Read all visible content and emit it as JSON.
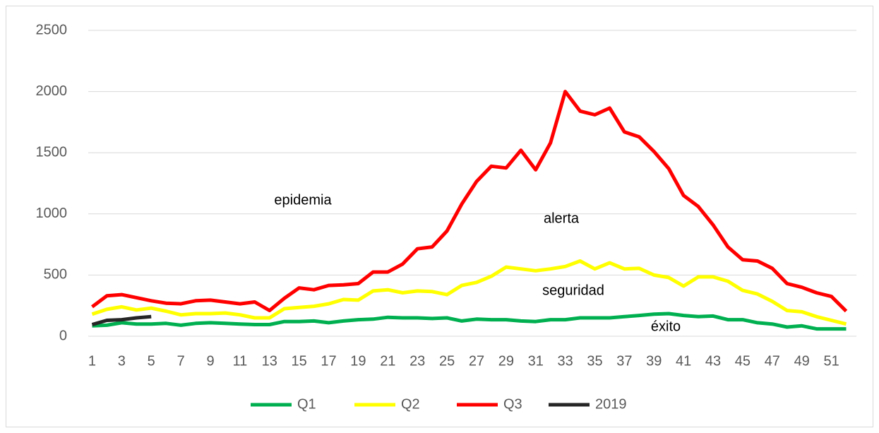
{
  "chart_data": {
    "type": "line",
    "categories": [
      1,
      null,
      3,
      null,
      5,
      null,
      7,
      null,
      9,
      null,
      11,
      null,
      13,
      null,
      15,
      null,
      17,
      null,
      19,
      null,
      21,
      null,
      23,
      null,
      25,
      null,
      27,
      null,
      29,
      null,
      31,
      null,
      33,
      null,
      35,
      null,
      37,
      null,
      39,
      null,
      41,
      null,
      43,
      null,
      45,
      null,
      47,
      null,
      49,
      null,
      51,
      null
    ],
    "series": [
      {
        "name": "Q1",
        "color": "#00b050",
        "values": [
          85,
          90,
          110,
          100,
          100,
          105,
          90,
          105,
          110,
          105,
          100,
          95,
          95,
          120,
          120,
          125,
          110,
          125,
          135,
          140,
          155,
          150,
          150,
          145,
          150,
          125,
          140,
          135,
          135,
          125,
          120,
          135,
          135,
          150,
          150,
          150,
          160,
          170,
          180,
          185,
          170,
          160,
          165,
          135,
          135,
          110,
          100,
          75,
          85,
          60,
          60,
          60
        ]
      },
      {
        "name": "Q2",
        "color": "#ffff00",
        "values": [
          180,
          220,
          240,
          215,
          230,
          205,
          175,
          185,
          185,
          190,
          175,
          150,
          150,
          225,
          235,
          245,
          265,
          300,
          295,
          370,
          380,
          355,
          370,
          365,
          340,
          415,
          440,
          490,
          565,
          550,
          535,
          550,
          570,
          615,
          550,
          600,
          550,
          555,
          500,
          480,
          410,
          485,
          485,
          450,
          375,
          345,
          285,
          210,
          200,
          160,
          130,
          100
        ]
      },
      {
        "name": "Q3",
        "color": "#ff0000",
        "values": [
          240,
          330,
          340,
          315,
          290,
          270,
          265,
          290,
          295,
          280,
          265,
          280,
          210,
          310,
          395,
          380,
          415,
          420,
          430,
          525,
          525,
          590,
          715,
          730,
          860,
          1080,
          1265,
          1390,
          1375,
          1520,
          1360,
          1580,
          2000,
          1840,
          1810,
          1865,
          1670,
          1630,
          1510,
          1370,
          1150,
          1060,
          910,
          730,
          625,
          615,
          555,
          430,
          400,
          355,
          325,
          205
        ]
      },
      {
        "name": "2019",
        "color": "#262626",
        "values": [
          95,
          130,
          135,
          150,
          160,
          null,
          null,
          null,
          null,
          null,
          null,
          null,
          null,
          null,
          null,
          null,
          null,
          null,
          null,
          null,
          null,
          null,
          null,
          null,
          null,
          null,
          null,
          null,
          null,
          null,
          null,
          null,
          null,
          null,
          null,
          null,
          null,
          null,
          null,
          null,
          null,
          null,
          null,
          null,
          null,
          null,
          null,
          null,
          null,
          null,
          null,
          null
        ]
      }
    ],
    "annotations": [
      "epidemia",
      "alerta",
      "seguridad",
      "éxito"
    ],
    "ylim": [
      0,
      2500
    ],
    "yticks": [
      0,
      500,
      1000,
      1500,
      2000,
      2500
    ],
    "grid": true,
    "legend": "bottom"
  }
}
